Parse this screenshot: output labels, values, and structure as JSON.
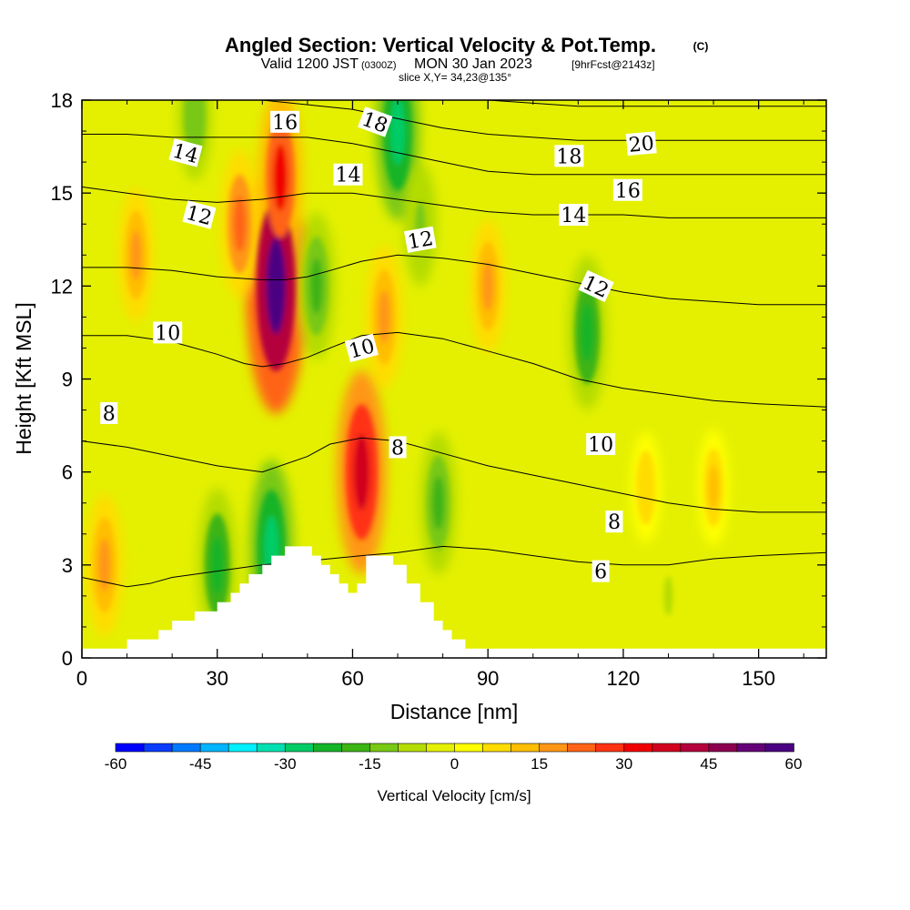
{
  "title": {
    "main": "Angled Section: Vertical Velocity & Pot.Temp.",
    "copyright": "(C)",
    "valid_prefix": "Valid 1200 JST",
    "valid_z": "(0300Z)",
    "valid_date": "MON 30 Jan 2023",
    "forecast": "[9hrFcst@2143z]",
    "slice": "slice X,Y= 34,23@135°"
  },
  "colors": {
    "background_field": "#e4f000",
    "contour_line": "#000000",
    "terrain": "#ffffff"
  },
  "chart_data": {
    "type": "heatmap",
    "xlabel": "Distance [nm]",
    "ylabel": "Height [Kft MSL]",
    "xlim": [
      0,
      165
    ],
    "ylim": [
      0,
      18
    ],
    "xticks": [
      0,
      30,
      60,
      90,
      120,
      150
    ],
    "yticks": [
      0,
      3,
      6,
      9,
      12,
      15,
      18
    ],
    "colorbar": {
      "label": "Vertical Velocity [cm/s]",
      "min": -60,
      "max": 60,
      "step": 5,
      "tick_values": [
        -60,
        -45,
        -30,
        -15,
        0,
        15,
        30,
        45,
        60
      ],
      "colors": [
        "#0000ff",
        "#0a3cff",
        "#0078ff",
        "#00b4ff",
        "#00f0ff",
        "#00e0b0",
        "#00cc66",
        "#14b428",
        "#3cb414",
        "#78c814",
        "#b4dc00",
        "#e4f000",
        "#ffff00",
        "#ffdc00",
        "#ffbe00",
        "#ff9614",
        "#ff6414",
        "#ff3214",
        "#f00000",
        "#d2001e",
        "#b4003c",
        "#8c0050",
        "#640078",
        "#4b0082"
      ]
    },
    "vertical_velocity_features": [
      {
        "type": "updraft",
        "center": [
          43,
          12
        ],
        "peak": 55
      },
      {
        "type": "updraft",
        "center": [
          44,
          15.5
        ],
        "peak": 30
      },
      {
        "type": "updraft",
        "center": [
          62,
          6
        ],
        "peak": 38
      },
      {
        "type": "updraft",
        "center": [
          5,
          3
        ],
        "peak": 18
      },
      {
        "type": "updraft",
        "center": [
          12,
          13
        ],
        "peak": 15
      },
      {
        "type": "updraft",
        "center": [
          35,
          14
        ],
        "peak": 20
      },
      {
        "type": "updraft",
        "center": [
          67,
          11
        ],
        "peak": 18
      },
      {
        "type": "updraft",
        "center": [
          90,
          12
        ],
        "peak": 15
      },
      {
        "type": "updraft",
        "center": [
          125,
          5.5
        ],
        "peak": 8
      },
      {
        "type": "updraft",
        "center": [
          140,
          5.5
        ],
        "peak": 10
      },
      {
        "type": "downdraft",
        "center": [
          42,
          3.5
        ],
        "peak": -30
      },
      {
        "type": "downdraft",
        "center": [
          30,
          3
        ],
        "peak": -22
      },
      {
        "type": "downdraft",
        "center": [
          52,
          12
        ],
        "peak": -20
      },
      {
        "type": "downdraft",
        "center": [
          70,
          17
        ],
        "peak": -30
      },
      {
        "type": "downdraft",
        "center": [
          79,
          5
        ],
        "peak": -18
      },
      {
        "type": "downdraft",
        "center": [
          112,
          10.5
        ],
        "peak": -22
      },
      {
        "type": "downdraft",
        "center": [
          75,
          14
        ],
        "peak": -12
      },
      {
        "type": "downdraft",
        "center": [
          25,
          17.5
        ],
        "peak": -14
      },
      {
        "type": "downdraft",
        "center": [
          130,
          2
        ],
        "peak": -6
      }
    ],
    "potential_temperature_contours": [
      {
        "level": "6",
        "x": [
          0,
          10,
          15,
          20,
          30,
          40,
          48,
          55,
          62,
          70,
          80,
          90,
          100,
          110,
          120,
          130,
          140,
          150,
          165
        ],
        "y": [
          2.6,
          2.3,
          2.4,
          2.6,
          2.8,
          3.0,
          3.1,
          3.2,
          3.3,
          3.4,
          3.6,
          3.5,
          3.3,
          3.1,
          3.0,
          3.0,
          3.2,
          3.3,
          3.4
        ]
      },
      {
        "level": "8",
        "x": [
          0,
          10,
          20,
          30,
          40,
          50,
          55,
          62,
          70,
          80,
          90,
          100,
          110,
          120,
          130,
          140,
          150,
          165
        ],
        "y": [
          7.0,
          6.8,
          6.5,
          6.2,
          6.0,
          6.5,
          6.9,
          7.1,
          7.0,
          6.6,
          6.2,
          5.9,
          5.6,
          5.3,
          5.0,
          4.8,
          4.7,
          4.7
        ]
      },
      {
        "level": "10",
        "x": [
          0,
          10,
          20,
          30,
          36,
          40,
          45,
          50,
          55,
          62,
          70,
          80,
          90,
          100,
          110,
          120,
          130,
          140,
          150,
          165
        ],
        "y": [
          10.4,
          10.4,
          10.2,
          9.8,
          9.5,
          9.4,
          9.5,
          9.7,
          10.0,
          10.4,
          10.5,
          10.3,
          9.9,
          9.5,
          9.0,
          8.7,
          8.5,
          8.3,
          8.2,
          8.1
        ]
      },
      {
        "level": "12",
        "x": [
          0,
          10,
          20,
          30,
          40,
          45,
          50,
          55,
          62,
          70,
          80,
          90,
          100,
          110,
          120,
          130,
          140,
          150,
          165
        ],
        "y": [
          12.6,
          12.6,
          12.5,
          12.3,
          12.2,
          12.2,
          12.3,
          12.5,
          12.8,
          13.0,
          12.9,
          12.7,
          12.4,
          12.1,
          11.8,
          11.6,
          11.5,
          11.4,
          11.4
        ]
      },
      {
        "level": "14",
        "x": [
          0,
          10,
          20,
          30,
          40,
          50,
          60,
          70,
          80,
          90,
          100,
          110,
          120,
          130,
          140,
          150,
          165
        ],
        "y": [
          15.2,
          15.0,
          14.8,
          14.7,
          14.8,
          15.0,
          15.0,
          14.8,
          14.6,
          14.4,
          14.3,
          14.3,
          14.3,
          14.2,
          14.2,
          14.2,
          14.2
        ]
      },
      {
        "level": "16",
        "x": [
          0,
          10,
          20,
          30,
          40,
          50,
          60,
          70,
          80,
          90,
          100,
          110,
          120,
          130,
          140,
          150,
          165
        ],
        "y": [
          16.9,
          16.9,
          16.8,
          16.8,
          16.8,
          16.8,
          16.6,
          16.3,
          16.0,
          15.7,
          15.6,
          15.6,
          15.6,
          15.6,
          15.6,
          15.6,
          15.6
        ]
      },
      {
        "level": "18",
        "x": [
          0,
          20,
          40,
          60,
          70,
          80,
          90,
          100,
          110,
          120,
          130,
          140,
          150,
          165
        ],
        "y": [
          18.0,
          18.0,
          18.0,
          17.7,
          17.4,
          17.1,
          16.9,
          16.8,
          16.7,
          16.7,
          16.7,
          16.7,
          16.7,
          16.7
        ]
      },
      {
        "level": "20",
        "x": [
          90,
          100,
          110,
          120,
          130,
          140,
          150,
          165
        ],
        "y": [
          18.0,
          17.9,
          17.8,
          17.8,
          17.8,
          17.8,
          17.8,
          17.8
        ]
      }
    ],
    "contour_labels": [
      {
        "text": "16",
        "x": 45,
        "y": 17.3,
        "rot": 0
      },
      {
        "text": "18",
        "x": 65,
        "y": 17.3,
        "rot": 20
      },
      {
        "text": "14",
        "x": 23,
        "y": 16.3,
        "rot": 15
      },
      {
        "text": "14",
        "x": 59,
        "y": 15.6,
        "rot": 0
      },
      {
        "text": "18",
        "x": 108,
        "y": 16.2,
        "rot": 0
      },
      {
        "text": "20",
        "x": 124,
        "y": 16.6,
        "rot": -5
      },
      {
        "text": "16",
        "x": 121,
        "y": 15.1,
        "rot": 0
      },
      {
        "text": "12",
        "x": 26,
        "y": 14.3,
        "rot": 15
      },
      {
        "text": "14",
        "x": 109,
        "y": 14.3,
        "rot": 0
      },
      {
        "text": "12",
        "x": 75,
        "y": 13.5,
        "rot": -10
      },
      {
        "text": "12",
        "x": 114,
        "y": 12.0,
        "rot": 25
      },
      {
        "text": "10",
        "x": 19,
        "y": 10.5,
        "rot": 0
      },
      {
        "text": "10",
        "x": 62,
        "y": 10.0,
        "rot": -15
      },
      {
        "text": "8",
        "x": 6,
        "y": 7.9,
        "rot": 0
      },
      {
        "text": "8",
        "x": 70,
        "y": 6.8,
        "rot": 0
      },
      {
        "text": "10",
        "x": 115,
        "y": 6.9,
        "rot": 0
      },
      {
        "text": "8",
        "x": 118,
        "y": 4.4,
        "rot": 0
      },
      {
        "text": "6",
        "x": 115,
        "y": 2.8,
        "rot": 0
      }
    ],
    "terrain_profile": {
      "x": [
        0,
        5,
        10,
        15,
        17,
        20,
        22,
        25,
        28,
        30,
        33,
        35,
        37,
        40,
        42,
        45,
        47,
        48,
        51,
        53,
        55,
        57,
        59,
        61,
        63,
        65,
        67,
        69,
        72,
        75,
        78,
        80,
        82,
        84,
        85,
        165
      ],
      "y": [
        0.3,
        0.3,
        0.6,
        0.6,
        0.9,
        1.2,
        1.2,
        1.5,
        1.5,
        1.8,
        2.1,
        2.4,
        2.7,
        3.0,
        3.3,
        3.6,
        3.6,
        3.6,
        3.3,
        3.0,
        2.7,
        2.4,
        2.1,
        2.4,
        3.3,
        3.3,
        3.3,
        3.0,
        2.4,
        1.8,
        1.2,
        0.9,
        0.6,
        0.6,
        0.3,
        0.3
      ]
    }
  }
}
